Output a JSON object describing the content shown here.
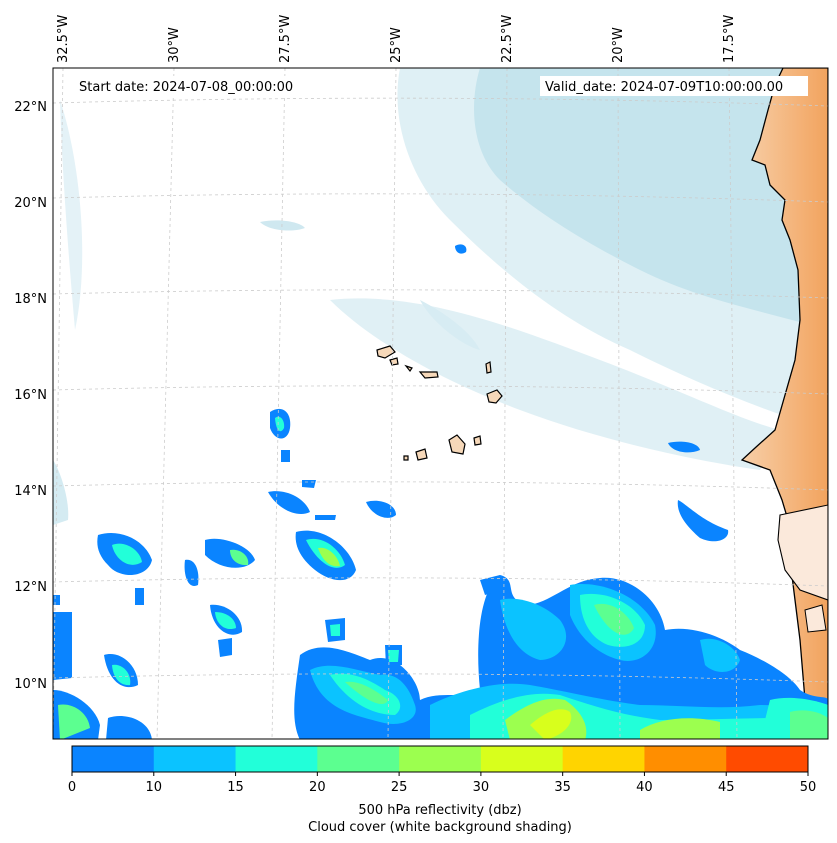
{
  "map": {
    "start_label": "Start date: 2024-07-08_00:00:00",
    "valid_label": "Valid_date: 2024-07-09T10:00:00.00",
    "lon_labels": [
      "32.5°W",
      "30°W",
      "27.5°W",
      "25°W",
      "22.5°W",
      "20°W",
      "17.5°W"
    ],
    "lat_labels": [
      "22°N",
      "20°N",
      "18°N",
      "16°N",
      "14°N",
      "12°N",
      "10°N"
    ],
    "colors": {
      "land": "#f2a35e",
      "land_light": "#f8d9bc",
      "cloud": "#a9d5e3",
      "ocean": "#ffffff"
    }
  },
  "colorbar": {
    "ticks": [
      "0",
      "10",
      "15",
      "20",
      "25",
      "30",
      "35",
      "40",
      "45",
      "50"
    ],
    "colors": [
      "#0a84ff",
      "#0bc3ff",
      "#22ffd9",
      "#5cff90",
      "#9cff4f",
      "#d8ff1c",
      "#ffd400",
      "#ff8e00",
      "#ff4b00"
    ],
    "label_line1": "500 hPa reflectivity (dbz)",
    "label_line2": "Cloud cover (white background shading)"
  }
}
